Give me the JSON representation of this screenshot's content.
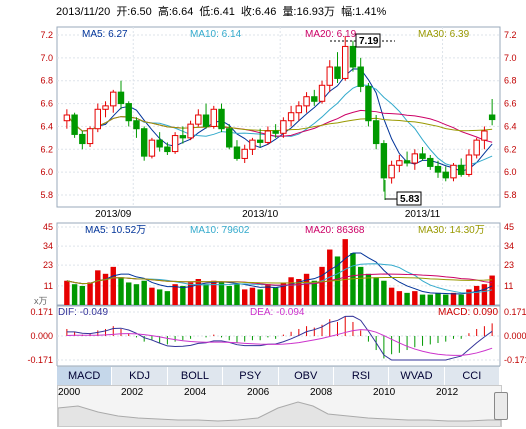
{
  "header": {
    "date": "2013/11/20",
    "open": "开:6.50",
    "high": "高:6.64",
    "low": "低:6.41",
    "close": "收:6.46",
    "volume": "量:16.93万",
    "change": "幅:1.41%"
  },
  "colors": {
    "up": "#e60000",
    "down": "#009900",
    "ma5": "#003399",
    "ma10": "#33aacc",
    "ma20": "#cc0066",
    "ma30": "#999900",
    "dif": "#333399",
    "dea": "#cc33cc"
  },
  "price_chart": {
    "legend": {
      "ma5": "MA5: 6.27",
      "ma10": "MA10: 6.14",
      "ma20": "MA20: 6.19",
      "ma30": "MA30: 6.39"
    },
    "y_ticks": [
      "7.2",
      "7.0",
      "6.8",
      "6.6",
      "6.4",
      "6.2",
      "6.0",
      "5.8"
    ],
    "x_labels": [
      "2013/09",
      "2013/10",
      "2013/11"
    ],
    "high_marker": "7.19",
    "low_marker": "5.83"
  },
  "volume_chart": {
    "legend": {
      "ma5": "MA5: 10.52万",
      "ma10": "MA10: 79602",
      "ma20": "MA20: 86368",
      "ma30": "MA30: 14.30万"
    },
    "y_ticks": [
      "45",
      "34",
      "23",
      "11"
    ],
    "unit": "x万"
  },
  "macd_chart": {
    "legend": {
      "dif": "DIF: -0.049",
      "dea": "DEA: -0.094",
      "macd": "MACD: 0.090"
    },
    "y_ticks": [
      "0.171",
      "0.000",
      "-0.171"
    ]
  },
  "tabs": [
    "MACD",
    "KDJ",
    "BOLL",
    "PSY",
    "OBV",
    "RSI",
    "WVAD",
    "CCI"
  ],
  "timeline": {
    "years": [
      "2000",
      "2002",
      "2004",
      "2006",
      "2008",
      "2010",
      "2012"
    ]
  },
  "chart_data": {
    "type": "candlestick",
    "y_range": [
      5.8,
      7.2
    ],
    "candles": [
      [
        6.45,
        6.55,
        6.38,
        6.5
      ],
      [
        6.5,
        6.52,
        6.3,
        6.33
      ],
      [
        6.33,
        6.36,
        6.2,
        6.25
      ],
      [
        6.25,
        6.4,
        6.22,
        6.38
      ],
      [
        6.38,
        6.6,
        6.35,
        6.55
      ],
      [
        6.55,
        6.62,
        6.48,
        6.58
      ],
      [
        6.58,
        6.72,
        6.52,
        6.7
      ],
      [
        6.7,
        6.8,
        6.55,
        6.6
      ],
      [
        6.6,
        6.62,
        6.4,
        6.45
      ],
      [
        6.45,
        6.48,
        6.3,
        6.38
      ],
      [
        6.38,
        6.4,
        6.1,
        6.14
      ],
      [
        6.14,
        6.3,
        6.12,
        6.28
      ],
      [
        6.28,
        6.35,
        6.18,
        6.22
      ],
      [
        6.22,
        6.26,
        6.15,
        6.18
      ],
      [
        6.18,
        6.35,
        6.16,
        6.32
      ],
      [
        6.32,
        6.4,
        6.25,
        6.3
      ],
      [
        6.3,
        6.45,
        6.28,
        6.42
      ],
      [
        6.42,
        6.55,
        6.4,
        6.5
      ],
      [
        6.5,
        6.6,
        6.38,
        6.4
      ],
      [
        6.4,
        6.58,
        6.38,
        6.55
      ],
      [
        6.55,
        6.6,
        6.35,
        6.38
      ],
      [
        6.38,
        6.42,
        6.2,
        6.22
      ],
      [
        6.22,
        6.28,
        6.1,
        6.12
      ],
      [
        6.12,
        6.24,
        6.08,
        6.2
      ],
      [
        6.2,
        6.3,
        6.15,
        6.28
      ],
      [
        6.28,
        6.38,
        6.22,
        6.26
      ],
      [
        6.26,
        6.4,
        6.24,
        6.36
      ],
      [
        6.36,
        6.42,
        6.3,
        6.34
      ],
      [
        6.34,
        6.48,
        6.3,
        6.45
      ],
      [
        6.45,
        6.58,
        6.4,
        6.52
      ],
      [
        6.52,
        6.62,
        6.45,
        6.58
      ],
      [
        6.58,
        6.7,
        6.52,
        6.66
      ],
      [
        6.66,
        6.72,
        6.58,
        6.62
      ],
      [
        6.62,
        6.8,
        6.6,
        6.76
      ],
      [
        6.76,
        6.98,
        6.7,
        6.92
      ],
      [
        6.92,
        7.05,
        6.78,
        6.82
      ],
      [
        6.82,
        7.19,
        6.8,
        7.1
      ],
      [
        7.1,
        7.15,
        6.88,
        6.92
      ],
      [
        6.92,
        7.0,
        6.7,
        6.75
      ],
      [
        6.75,
        6.78,
        6.4,
        6.45
      ],
      [
        6.45,
        6.5,
        6.2,
        6.25
      ],
      [
        6.25,
        6.28,
        5.83,
        5.95
      ],
      [
        5.95,
        6.1,
        5.9,
        6.06
      ],
      [
        6.06,
        6.15,
        6.0,
        6.1
      ],
      [
        6.1,
        6.18,
        6.05,
        6.08
      ],
      [
        6.08,
        6.2,
        6.02,
        6.16
      ],
      [
        6.16,
        6.22,
        6.1,
        6.12
      ],
      [
        6.12,
        6.15,
        6.02,
        6.05
      ],
      [
        6.05,
        6.1,
        5.95,
        6.0
      ],
      [
        6.0,
        6.05,
        5.92,
        5.95
      ],
      [
        5.95,
        6.08,
        5.92,
        6.06
      ],
      [
        6.06,
        6.12,
        5.96,
        5.98
      ],
      [
        5.98,
        6.2,
        5.96,
        6.15
      ],
      [
        6.15,
        6.3,
        6.12,
        6.28
      ],
      [
        6.28,
        6.4,
        6.2,
        6.36
      ],
      [
        6.5,
        6.64,
        6.41,
        6.46
      ]
    ],
    "volume": [
      [
        14,
        1
      ],
      [
        12,
        0
      ],
      [
        11,
        0
      ],
      [
        13,
        1
      ],
      [
        20,
        1
      ],
      [
        18,
        1
      ],
      [
        22,
        1
      ],
      [
        16,
        0
      ],
      [
        13,
        0
      ],
      [
        12,
        0
      ],
      [
        14,
        0
      ],
      [
        10,
        1
      ],
      [
        9,
        0
      ],
      [
        8,
        0
      ],
      [
        12,
        1
      ],
      [
        11,
        0
      ],
      [
        13,
        1
      ],
      [
        15,
        1
      ],
      [
        12,
        0
      ],
      [
        14,
        1
      ],
      [
        13,
        0
      ],
      [
        11,
        0
      ],
      [
        12,
        0
      ],
      [
        9,
        1
      ],
      [
        10,
        1
      ],
      [
        9,
        0
      ],
      [
        12,
        1
      ],
      [
        10,
        0
      ],
      [
        13,
        1
      ],
      [
        16,
        1
      ],
      [
        15,
        1
      ],
      [
        18,
        1
      ],
      [
        14,
        0
      ],
      [
        22,
        1
      ],
      [
        32,
        1
      ],
      [
        28,
        0
      ],
      [
        38,
        1
      ],
      [
        30,
        0
      ],
      [
        22,
        0
      ],
      [
        18,
        0
      ],
      [
        16,
        0
      ],
      [
        14,
        0
      ],
      [
        10,
        1
      ],
      [
        8,
        1
      ],
      [
        7,
        0
      ],
      [
        8,
        1
      ],
      [
        6,
        0
      ],
      [
        6,
        0
      ],
      [
        7,
        0
      ],
      [
        6,
        0
      ],
      [
        7,
        1
      ],
      [
        6,
        0
      ],
      [
        9,
        1
      ],
      [
        11,
        1
      ],
      [
        12,
        1
      ],
      [
        17,
        1
      ]
    ],
    "macd_hist": [
      0.05,
      0.03,
      0.01,
      0.02,
      0.04,
      0.05,
      0.07,
      0.05,
      0.02,
      -0.01,
      -0.04,
      -0.03,
      -0.05,
      -0.06,
      -0.04,
      -0.03,
      -0.02,
      0.0,
      -0.01,
      0.01,
      -0.01,
      -0.03,
      -0.05,
      -0.04,
      -0.03,
      -0.03,
      -0.01,
      -0.02,
      0.01,
      0.03,
      0.05,
      0.07,
      0.06,
      0.08,
      0.12,
      0.1,
      0.14,
      0.1,
      0.04,
      -0.04,
      -0.1,
      -0.16,
      -0.13,
      -0.12,
      -0.1,
      -0.08,
      -0.07,
      -0.06,
      -0.05,
      -0.04,
      -0.02,
      -0.02,
      0.02,
      0.05,
      0.07,
      0.09
    ],
    "macd_range": [
      -0.171,
      0.171
    ]
  }
}
